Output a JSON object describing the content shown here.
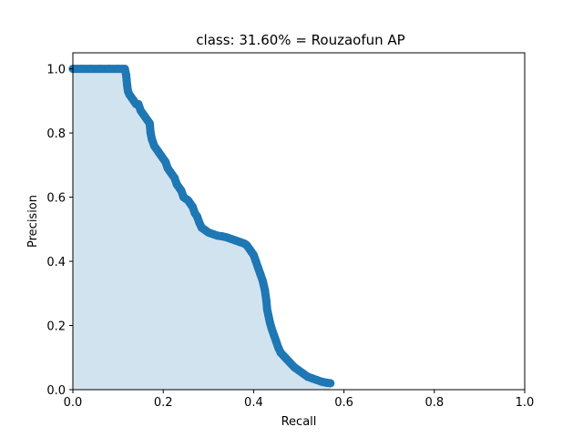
{
  "chart_data": {
    "type": "area",
    "title": "class: 31.60% = Rouzaofun AP",
    "xlabel": "Recall",
    "ylabel": "Precision",
    "xlim": [
      0,
      1
    ],
    "ylim": [
      0,
      1.05
    ],
    "x_ticks": [
      "0.0",
      "0.2",
      "0.4",
      "0.6",
      "0.8",
      "1.0"
    ],
    "y_ticks": [
      "0.0",
      "0.2",
      "0.4",
      "0.6",
      "0.8",
      "1.0"
    ],
    "grid": false,
    "colors": {
      "line": "#1f77b4",
      "fill": "#d2e3f0"
    },
    "series": [
      {
        "x": [
          0.0,
          0.02,
          0.04,
          0.06,
          0.08,
          0.1,
          0.115,
          0.118,
          0.12,
          0.122,
          0.125,
          0.13,
          0.135,
          0.14,
          0.145,
          0.15,
          0.155,
          0.16,
          0.165,
          0.17,
          0.172,
          0.175,
          0.18,
          0.185,
          0.19,
          0.195,
          0.2,
          0.205,
          0.21,
          0.215,
          0.22,
          0.225,
          0.23,
          0.235,
          0.24,
          0.245,
          0.25,
          0.255,
          0.26,
          0.265,
          0.27,
          0.275,
          0.28,
          0.285,
          0.29,
          0.3,
          0.31,
          0.32,
          0.33,
          0.34,
          0.35,
          0.36,
          0.37,
          0.38,
          0.385,
          0.39,
          0.395,
          0.4,
          0.405,
          0.41,
          0.415,
          0.42,
          0.425,
          0.428,
          0.43,
          0.433,
          0.436,
          0.44,
          0.445,
          0.45,
          0.455,
          0.46,
          0.47,
          0.48,
          0.49,
          0.5,
          0.51,
          0.52,
          0.53,
          0.54,
          0.55,
          0.56,
          0.57
        ],
        "y": [
          1.0,
          1.0,
          1.0,
          1.0,
          1.0,
          1.0,
          1.0,
          0.98,
          0.95,
          0.93,
          0.92,
          0.91,
          0.9,
          0.89,
          0.89,
          0.87,
          0.86,
          0.85,
          0.84,
          0.83,
          0.8,
          0.78,
          0.76,
          0.75,
          0.74,
          0.73,
          0.72,
          0.71,
          0.69,
          0.68,
          0.67,
          0.66,
          0.64,
          0.63,
          0.62,
          0.6,
          0.595,
          0.59,
          0.58,
          0.57,
          0.55,
          0.54,
          0.52,
          0.505,
          0.5,
          0.49,
          0.485,
          0.48,
          0.478,
          0.475,
          0.47,
          0.465,
          0.46,
          0.455,
          0.45,
          0.44,
          0.43,
          0.42,
          0.4,
          0.38,
          0.36,
          0.34,
          0.31,
          0.28,
          0.25,
          0.23,
          0.21,
          0.19,
          0.17,
          0.15,
          0.13,
          0.115,
          0.1,
          0.085,
          0.07,
          0.06,
          0.05,
          0.04,
          0.035,
          0.03,
          0.025,
          0.022,
          0.02
        ]
      }
    ]
  }
}
